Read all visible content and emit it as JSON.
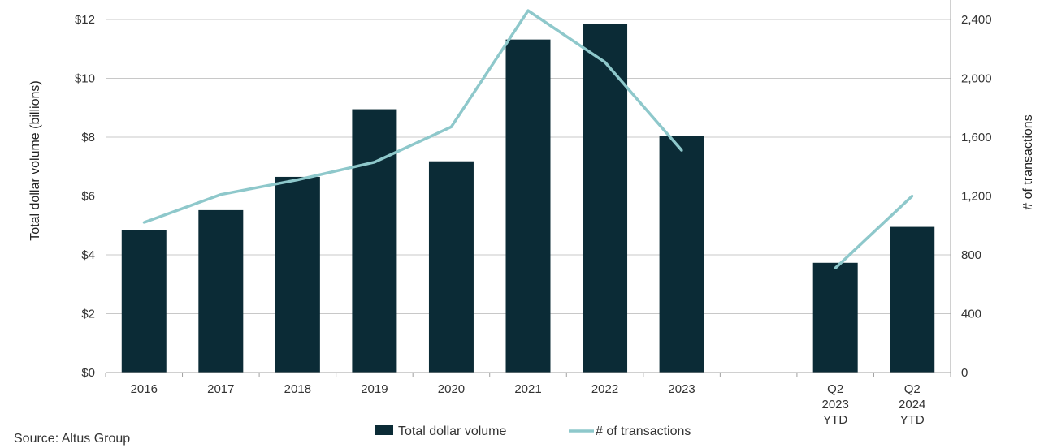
{
  "chart_data": {
    "type": "bar",
    "categories": [
      [
        "2016"
      ],
      [
        "2017"
      ],
      [
        "2018"
      ],
      [
        "2019"
      ],
      [
        "2020"
      ],
      [
        "2021"
      ],
      [
        "2022"
      ],
      [
        "2023"
      ],
      [
        ""
      ],
      [
        "Q2",
        "2023",
        "YTD"
      ],
      [
        "Q2",
        "2024",
        "YTD"
      ]
    ],
    "series": [
      {
        "name": "Total dollar volume",
        "type": "bar",
        "axis": "left",
        "color": "#0b2b36",
        "values": [
          4.85,
          5.52,
          6.65,
          8.95,
          7.18,
          11.32,
          11.85,
          8.05,
          null,
          3.73,
          4.95
        ]
      },
      {
        "name": "# of transactions",
        "type": "line",
        "axis": "right",
        "color": "#8ec8cb",
        "values": [
          1020,
          1210,
          1310,
          1430,
          1670,
          2460,
          2110,
          1510,
          null,
          710,
          1200
        ]
      }
    ],
    "left_axis": {
      "label": "Total dollar volume (billions)",
      "ylim": [
        0,
        12
      ],
      "ticks": [
        0,
        2,
        4,
        6,
        8,
        10,
        12
      ],
      "tick_labels": [
        "$0",
        "$2",
        "$4",
        "$6",
        "$8",
        "$10",
        "$12"
      ]
    },
    "right_axis": {
      "label": "# of transactions",
      "ylim": [
        0,
        2400
      ],
      "ticks": [
        0,
        400,
        800,
        1200,
        1600,
        2000,
        2400
      ],
      "tick_labels": [
        "0",
        "400",
        "800",
        "1,200",
        "1,600",
        "2,000",
        "2,400"
      ]
    },
    "grid": true,
    "gridline_color": "#c8c8c8",
    "legend_position": "bottom"
  },
  "source": "Source:  Altus Group"
}
